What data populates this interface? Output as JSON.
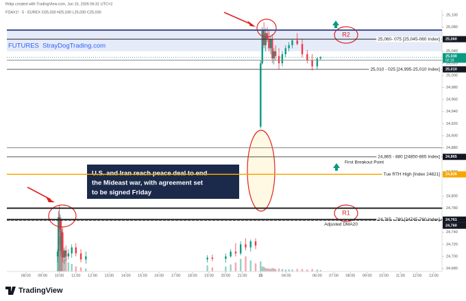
{
  "header": {
    "credit": "Relja created with TradingView.com, Jun 15, 2026 06:31 UTC+2",
    "symbol": "FDAX1! · 5 · EUREX  O25,030 H25,030 L25,030 C25,030"
  },
  "footer": {
    "brand": "TradingView"
  },
  "chart_data": {
    "type": "candlestick",
    "xlim": [
      -1.15,
      25.0
    ],
    "xticks": [
      {
        "value": 0,
        "label": "08:00"
      },
      {
        "value": 1,
        "label": "09:00"
      },
      {
        "value": 2,
        "label": "10:00"
      },
      {
        "value": 3,
        "label": "11:00"
      },
      {
        "value": 4,
        "label": "12:00"
      },
      {
        "value": 5,
        "label": "13:00"
      },
      {
        "value": 6,
        "label": "14:00"
      },
      {
        "value": 7,
        "label": "15:00"
      },
      {
        "value": 8,
        "label": "16:00"
      },
      {
        "value": 9,
        "label": "17:00"
      },
      {
        "value": 10,
        "label": "18:00"
      },
      {
        "value": 11,
        "label": "19:00"
      },
      {
        "value": 12,
        "label": "20:00"
      },
      {
        "value": 13,
        "label": "21:00"
      },
      {
        "value": 14.1,
        "label": "15"
      },
      {
        "value": 15.64,
        "label": "04:00"
      },
      {
        "value": 17.5,
        "label": "06:00"
      },
      {
        "value": 18.5,
        "label": "07:00"
      },
      {
        "value": 19.5,
        "label": "08:00"
      },
      {
        "value": 20.5,
        "label": "09:00"
      },
      {
        "value": 21.5,
        "label": "10:00"
      },
      {
        "value": 22.5,
        "label": "11:00"
      },
      {
        "value": 23.5,
        "label": "12:00"
      },
      {
        "value": 24.5,
        "label": "13:00"
      }
    ],
    "ylim": [
      24675,
      25109
    ],
    "yticks": [
      {
        "value": 24680,
        "label": "24,680"
      },
      {
        "value": 24700,
        "label": "24,700"
      },
      {
        "value": 24720,
        "label": "24,720"
      },
      {
        "value": 24740,
        "label": "24,740"
      },
      {
        "value": 24780,
        "label": "24,780"
      },
      {
        "value": 24800,
        "label": "24,800"
      },
      {
        "value": 24840,
        "label": "24,840"
      },
      {
        "value": 24880,
        "label": "24,880"
      },
      {
        "value": 24900,
        "label": "24,900"
      },
      {
        "value": 24920,
        "label": "24,920"
      },
      {
        "value": 24940,
        "label": "24,940"
      },
      {
        "value": 24960,
        "label": "24,960"
      },
      {
        "value": 24980,
        "label": "24,980"
      },
      {
        "value": 25000,
        "label": "25,000"
      },
      {
        "value": 25020,
        "label": "25,020"
      },
      {
        "value": 25040,
        "label": "25,040"
      },
      {
        "value": 25080,
        "label": "25,080"
      },
      {
        "value": 25100,
        "label": "25,100"
      }
    ],
    "up_color": "#089981",
    "down_color": "#f23645",
    "volume_color": "#9aa0a6",
    "candles": {
      "x": [
        1.9,
        1.95,
        2.0,
        2.05,
        2.1,
        2.15,
        2.2,
        2.3,
        2.4,
        2.55,
        2.75,
        3.0,
        3.3,
        3.6,
        10.9,
        11.2,
        12.0,
        12.3,
        12.6,
        12.9,
        13.2,
        13.5,
        13.8,
        14.1,
        14.2,
        14.3,
        14.4,
        14.5,
        14.6,
        14.7,
        14.8,
        14.9,
        15.0,
        15.2,
        15.4,
        15.6,
        15.8,
        16.0,
        16.3,
        16.6,
        16.9,
        17.2,
        17.5,
        17.7
      ],
      "open": [
        24700,
        24708,
        24765,
        24745,
        24760,
        24710,
        24740,
        24698,
        24710,
        24700,
        24705,
        24715,
        24705,
        24695,
        24695,
        24698,
        24696,
        24700,
        24708,
        24705,
        24720,
        24715,
        24725,
        24915,
        25020,
        25075,
        25050,
        25070,
        25060,
        25045,
        25060,
        25028,
        25040,
        25032,
        25020,
        25035,
        25045,
        25050,
        25058,
        25052,
        25035,
        25025,
        25015,
        25028
      ],
      "high": [
        24712,
        24775,
        24785,
        24770,
        24765,
        24745,
        24748,
        24715,
        24718,
        24712,
        24720,
        24722,
        24712,
        24708,
        24702,
        24703,
        24705,
        24712,
        24722,
        24725,
        24730,
        24728,
        24730,
        25025,
        25080,
        25088,
        25078,
        25080,
        25075,
        25065,
        25068,
        25045,
        25050,
        25045,
        25040,
        25050,
        25055,
        25060,
        25070,
        25060,
        25042,
        25035,
        25030,
        25032
      ],
      "low": [
        24690,
        24700,
        24740,
        24720,
        24700,
        24705,
        24690,
        24688,
        24692,
        24695,
        24698,
        24700,
        24690,
        24688,
        24690,
        24692,
        24690,
        24698,
        24700,
        24702,
        24710,
        24708,
        24712,
        24912,
        25018,
        25045,
        25040,
        25055,
        25040,
        25035,
        25020,
        25018,
        25025,
        25010,
        25015,
        25030,
        25040,
        25045,
        25050,
        25030,
        25020,
        25008,
        25010,
        25025
      ],
      "close": [
        24708,
        24765,
        24745,
        24760,
        24710,
        24740,
        24698,
        24710,
        24700,
        24705,
        24715,
        24705,
        24695,
        24700,
        24698,
        24696,
        24700,
        24708,
        24705,
        24720,
        24715,
        24725,
        24718,
        25020,
        25075,
        25050,
        25070,
        25060,
        25045,
        25060,
        25028,
        25040,
        25032,
        25020,
        25035,
        25045,
        25050,
        25058,
        25052,
        25035,
        25025,
        25015,
        25028,
        25030
      ],
      "volume": [
        30,
        95,
        80,
        70,
        55,
        45,
        40,
        25,
        30,
        18,
        15,
        10,
        8,
        6,
        12,
        8,
        10,
        14,
        18,
        25,
        30,
        22,
        16,
        20,
        10,
        9,
        7,
        6,
        6,
        5,
        7,
        6,
        5,
        6,
        5,
        4,
        4,
        4,
        5,
        5,
        4,
        5,
        4,
        3
      ]
    },
    "band": {
      "low": 25040,
      "high": 25075,
      "color": "#dbe3f7"
    },
    "levels": [
      {
        "value": 25075,
        "color": "#3d4a8a",
        "width": 2
      },
      {
        "value": 25060,
        "color": "#222222",
        "width": 1,
        "label": "25,060",
        "text": "25,060- 075 [25,045-060 Index]"
      },
      {
        "value": 25025,
        "color": "#888888",
        "width": 1
      },
      {
        "value": 25010,
        "color": "#555555",
        "width": 1,
        "label": "25,010",
        "text": "25,010 - 025 [24,995-25,010 Index]"
      },
      {
        "value": 24880,
        "color": "#888888",
        "width": 1
      },
      {
        "value": 24865,
        "color": "#555555",
        "width": 1,
        "label": "24,865",
        "text": "24,865 - 880 [24850-865 Index]"
      },
      {
        "value": 24836,
        "color": "#f7a600",
        "width": 1.5,
        "label": "24,836",
        "text": "Tue RTH High [Index 24821]"
      },
      {
        "value": 24780,
        "color": "#222222",
        "width": 2
      },
      {
        "value": 24761,
        "color": "#222222",
        "width": 2,
        "label": "24,761",
        "text": "24,765 - 780 [24745-760 Index]"
      },
      {
        "value": 24760,
        "color": "#222222",
        "width": 1.2,
        "dashed": true,
        "label": "24,760",
        "text": "Adjusted DMA20"
      }
    ],
    "last": {
      "value": 25030,
      "label": "25,030",
      "countdown": "02:18",
      "color": "#089981"
    },
    "watermark": {
      "label": "FUTURES",
      "site": "StrayDogTrading.com"
    },
    "notes": {
      "r2": "R2",
      "r1": "R1",
      "breakout": "First Breakout Point"
    },
    "annotation": {
      "lines": [
        "U.S. and Iran reach peace deal to end",
        "the Mideast war, with agreement set",
        "to be signed Friday"
      ]
    }
  }
}
